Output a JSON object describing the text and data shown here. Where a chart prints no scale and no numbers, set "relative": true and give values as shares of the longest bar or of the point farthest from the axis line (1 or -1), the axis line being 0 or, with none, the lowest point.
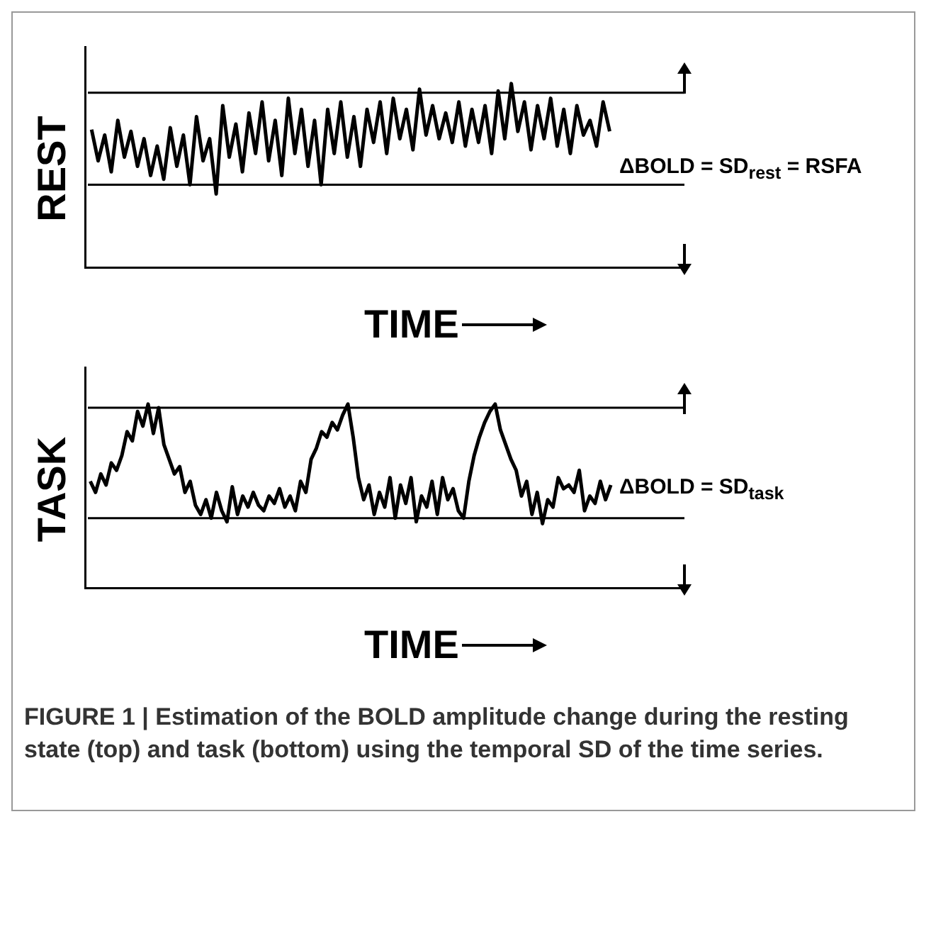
{
  "chart_data": [
    {
      "type": "line",
      "ylabel": "REST",
      "xlabel": "TIME",
      "relative": true,
      "grid": false,
      "legend": false,
      "categories": [
        null,
        null,
        null,
        null,
        null,
        null,
        null,
        null,
        null,
        null,
        null,
        null,
        null,
        null,
        null,
        null,
        null,
        null,
        null,
        null,
        null,
        null,
        null,
        null,
        null,
        null,
        null,
        null,
        null,
        null,
        null,
        null,
        null,
        null,
        null,
        null,
        null,
        null,
        null,
        null,
        null,
        null,
        null,
        null,
        null,
        null,
        null,
        null,
        null,
        null,
        null,
        null,
        null,
        null,
        null,
        null,
        null,
        null,
        null,
        null,
        null,
        null,
        null,
        null,
        null,
        null,
        null,
        null,
        null,
        null,
        null,
        null,
        null,
        null,
        null,
        null,
        null,
        null,
        null,
        null
      ],
      "series": [
        {
          "color": "#000000",
          "values": [
            0.75,
            0.58,
            0.72,
            0.52,
            0.8,
            0.6,
            0.74,
            0.55,
            0.7,
            0.5,
            0.66,
            0.48,
            0.76,
            0.55,
            0.72,
            0.45,
            0.82,
            0.58,
            0.7,
            0.4,
            0.88,
            0.6,
            0.78,
            0.52,
            0.84,
            0.62,
            0.9,
            0.58,
            0.8,
            0.5,
            0.92,
            0.62,
            0.86,
            0.55,
            0.8,
            0.45,
            0.86,
            0.62,
            0.9,
            0.6,
            0.82,
            0.55,
            0.86,
            0.68,
            0.9,
            0.62,
            0.92,
            0.7,
            0.86,
            0.64,
            0.97,
            0.72,
            0.88,
            0.7,
            0.84,
            0.68,
            0.9,
            0.66,
            0.86,
            0.68,
            0.88,
            0.62,
            0.96,
            0.7,
            1.0,
            0.74,
            0.9,
            0.64,
            0.88,
            0.7,
            0.92,
            0.66,
            0.86,
            0.62,
            0.88,
            0.72,
            0.8,
            0.66,
            0.9,
            0.74
          ]
        }
      ],
      "ref_lines": [
        {
          "axis": "y",
          "value": 0.95
        },
        {
          "axis": "y",
          "value": 0.45
        }
      ],
      "annotations": [
        "ΔBOLD = SD$_{rest}$ = RSFA"
      ]
    },
    {
      "type": "line",
      "ylabel": "TASK",
      "xlabel": "TIME",
      "relative": true,
      "grid": false,
      "legend": false,
      "categories": [
        null,
        null,
        null,
        null,
        null,
        null,
        null,
        null,
        null,
        null,
        null,
        null,
        null,
        null,
        null,
        null,
        null,
        null,
        null,
        null,
        null,
        null,
        null,
        null,
        null,
        null,
        null,
        null,
        null,
        null,
        null,
        null,
        null,
        null,
        null,
        null,
        null,
        null,
        null,
        null,
        null,
        null,
        null,
        null,
        null,
        null,
        null,
        null,
        null,
        null,
        null,
        null,
        null,
        null,
        null,
        null,
        null,
        null,
        null,
        null,
        null,
        null,
        null,
        null,
        null,
        null,
        null,
        null,
        null,
        null,
        null,
        null,
        null,
        null,
        null,
        null,
        null,
        null,
        null,
        null,
        null,
        null,
        null,
        null,
        null,
        null,
        null,
        null,
        null,
        null,
        null,
        null,
        null,
        null,
        null,
        null,
        null,
        null,
        null,
        null
      ],
      "series": [
        {
          "color": "#000000",
          "values": [
            0.58,
            0.52,
            0.62,
            0.56,
            0.68,
            0.64,
            0.72,
            0.85,
            0.8,
            0.96,
            0.88,
            1.0,
            0.84,
            0.98,
            0.78,
            0.7,
            0.62,
            0.66,
            0.52,
            0.58,
            0.45,
            0.4,
            0.48,
            0.38,
            0.52,
            0.42,
            0.36,
            0.55,
            0.4,
            0.5,
            0.44,
            0.52,
            0.45,
            0.42,
            0.5,
            0.46,
            0.54,
            0.44,
            0.5,
            0.42,
            0.58,
            0.52,
            0.7,
            0.76,
            0.85,
            0.82,
            0.9,
            0.86,
            0.94,
            1.0,
            0.82,
            0.6,
            0.48,
            0.56,
            0.4,
            0.52,
            0.44,
            0.6,
            0.38,
            0.56,
            0.46,
            0.6,
            0.36,
            0.5,
            0.44,
            0.58,
            0.4,
            0.6,
            0.48,
            0.54,
            0.42,
            0.38,
            0.58,
            0.72,
            0.82,
            0.9,
            0.96,
            1.0,
            0.86,
            0.78,
            0.7,
            0.64,
            0.5,
            0.58,
            0.4,
            0.52,
            0.35,
            0.48,
            0.44,
            0.6,
            0.54,
            0.56,
            0.52,
            0.64,
            0.42,
            0.5,
            0.46,
            0.58,
            0.48,
            0.56
          ]
        }
      ],
      "ref_lines": [
        {
          "axis": "y",
          "value": 0.98
        },
        {
          "axis": "y",
          "value": 0.38
        }
      ],
      "annotations": [
        "ΔBOLD = SD$_{task}$",
        "FIGURE 1 | Estimation of the BOLD amplitude change during the resting state (top) and task (bottom) using the temporal SD of the time series."
      ]
    }
  ]
}
